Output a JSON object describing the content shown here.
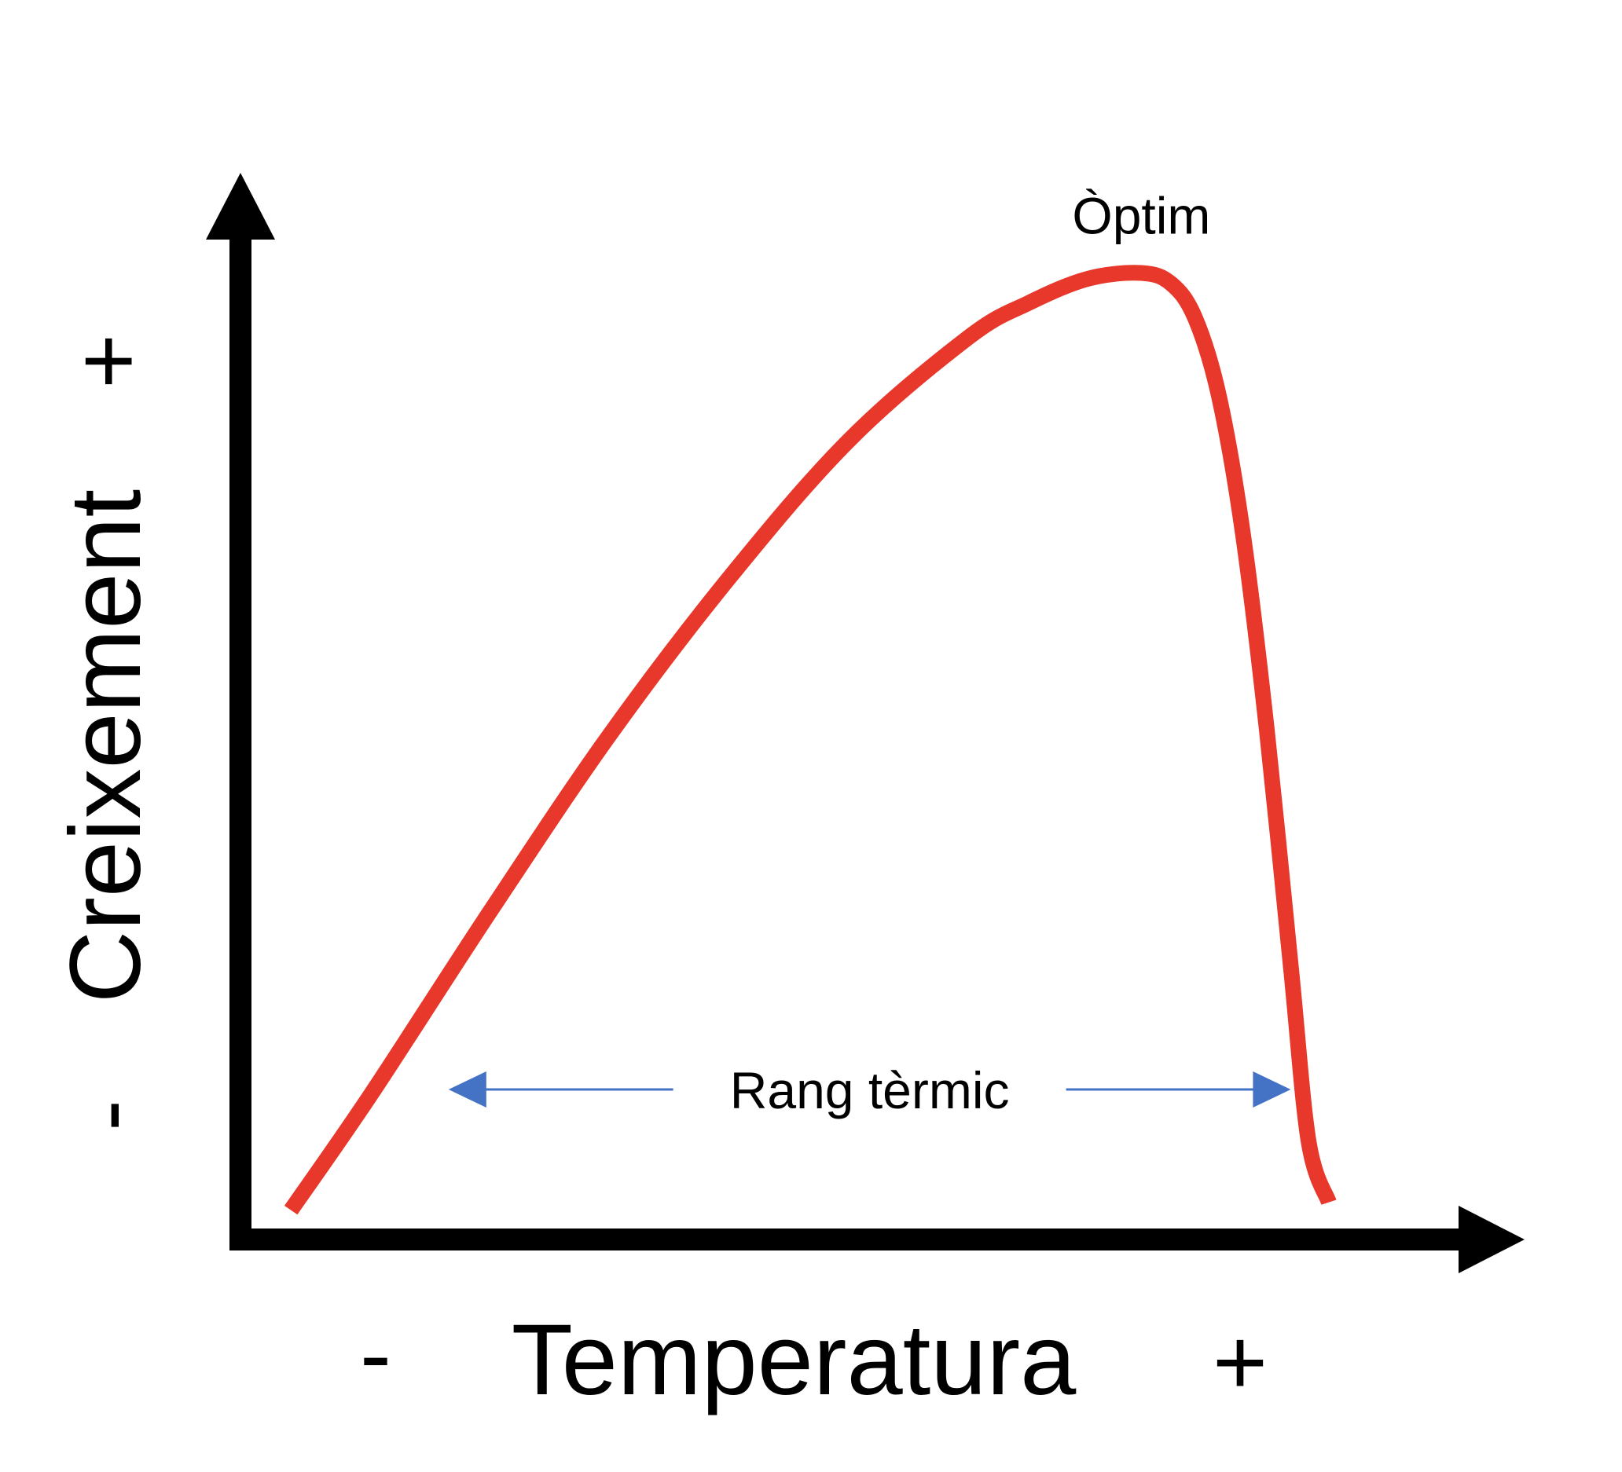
{
  "chart_data": {
    "type": "line",
    "title": "",
    "xlabel": "Temperatura",
    "ylabel": "Creixement",
    "x_min_label": "-",
    "x_max_label": "+",
    "y_min_label": "-",
    "y_max_label": "+",
    "xlim": [
      0,
      100
    ],
    "ylim": [
      0,
      100
    ],
    "grid": false,
    "series": [
      {
        "name": "",
        "color": "#e8372b",
        "x": [
          3.3,
          10,
          20,
          30,
          40,
          50,
          60,
          65,
          70,
          74.5,
          77,
          79,
          81,
          83,
          85,
          87,
          88.5,
          90.2
        ],
        "y": [
          3.0,
          14.8,
          33.5,
          51.5,
          67.5,
          81.5,
          92.0,
          95.5,
          98.0,
          98.6,
          97.5,
          94.0,
          86.0,
          72.0,
          52.0,
          28.0,
          10.0,
          3.8
        ]
      }
    ],
    "annotations": [
      {
        "id": "optimum",
        "text": "Òptim",
        "x": 74.5,
        "y": 105
      },
      {
        "id": "range",
        "text": "Rang tèrmic",
        "x_start": 16.5,
        "x_end": 87,
        "y": 15.3,
        "color": "#4472c4"
      }
    ]
  }
}
